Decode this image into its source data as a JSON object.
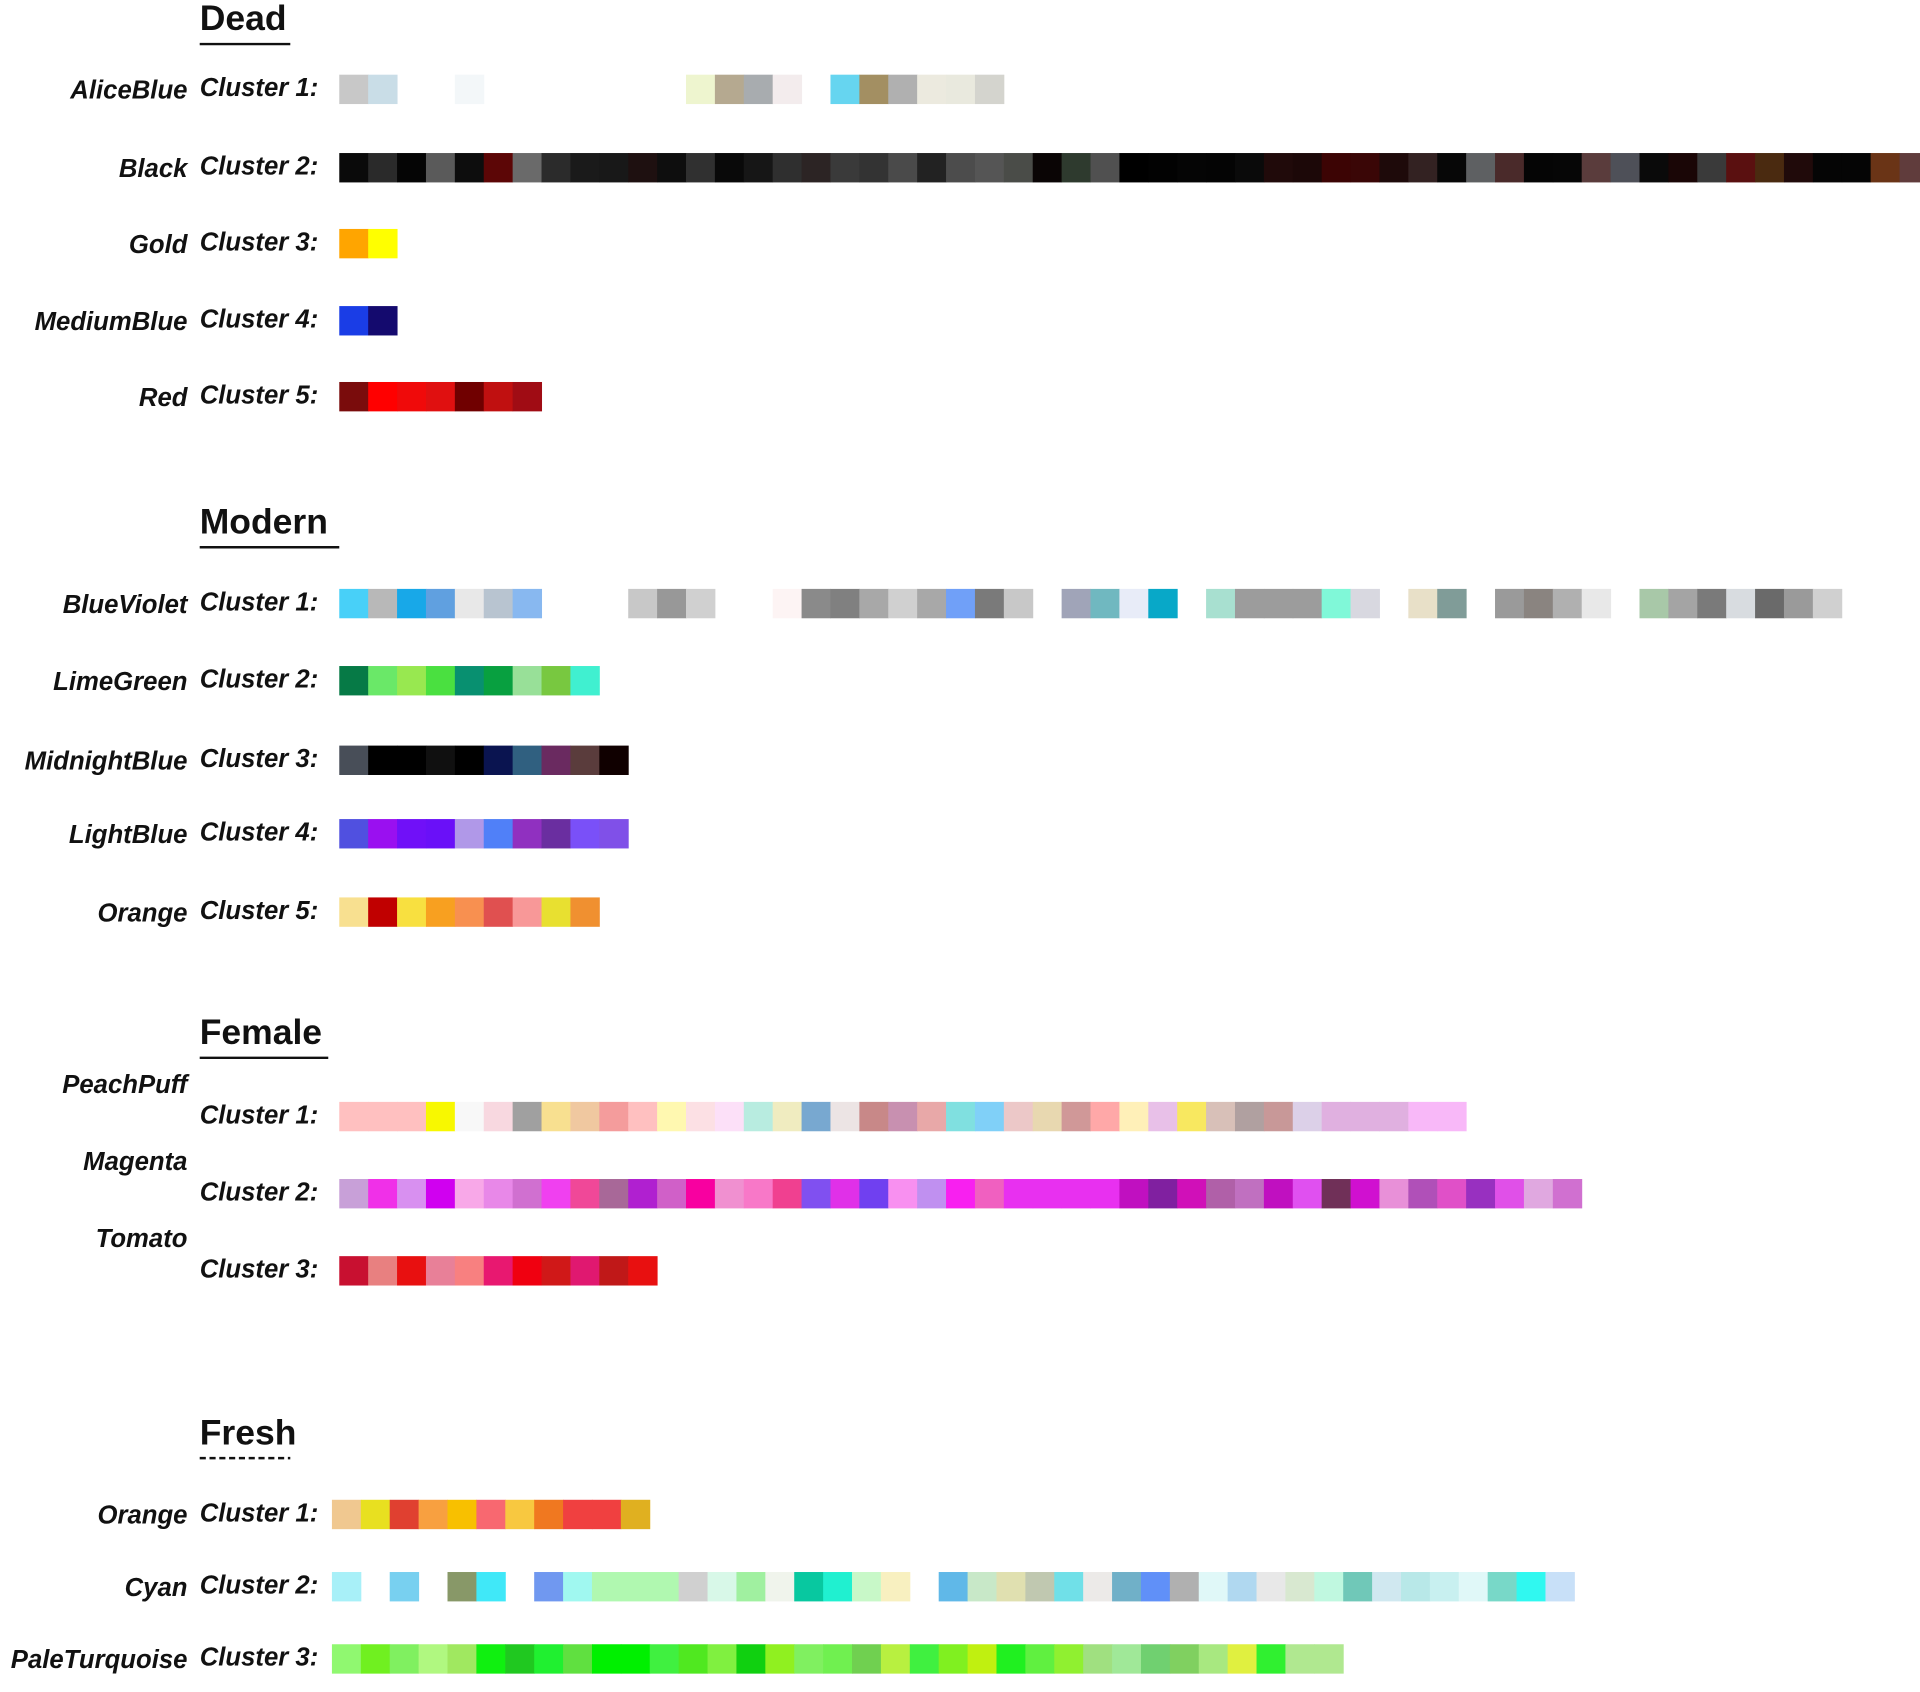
{
  "sections": [
    {
      "title": "Dead",
      "rows": [
        {
          "name": "AliceBlue",
          "cluster": "Cluster 1:",
          "swatches": [
            "#c8c8c8",
            "#c9dde7",
            null,
            null,
            "#f3f7f9",
            null,
            null,
            null,
            null,
            null,
            null,
            null,
            "#eef5cf",
            "#b5a990",
            "#a8acaf",
            "#f3eced",
            null,
            "#66d5f0",
            "#a38f62",
            "#b0b0b0",
            "#eceadf",
            "#e9e9de",
            "#d4d4ce"
          ]
        },
        {
          "name": "Black",
          "cluster": "Cluster 2:",
          "swatches": [
            "#0a0a0a",
            "#2a2a2a",
            "#050505",
            "#5a5a5a",
            "#0d0d0d",
            "#5c0606",
            "#6a6a6a",
            "#2b2b2b",
            "#1a1a1a",
            "#181818",
            "#1e1010",
            "#0e0e0e",
            "#303030",
            "#090909",
            "#161616",
            "#2f2f2f",
            "#2c2424",
            "#3a3a3a",
            "#333333",
            "#4a4a4a",
            "#222222",
            "#4c4c4c",
            "#555555",
            "#4a4c48",
            "#0a0505",
            "#2e3a2e",
            "#505050",
            "#000000",
            "#020202",
            "#050505",
            "#040404",
            "#0a0a0a",
            "#200a0a",
            "#1c0808",
            "#3c0404",
            "#3a0606",
            "#1e0a0a",
            "#332222",
            "#070707",
            "#5e6062",
            "#4a2a2a",
            "#050505",
            "#060606",
            "#5a3c3c",
            "#4e5058",
            "#0a0a0a",
            "#1a0606",
            "#3a3a3a",
            "#5a1010",
            "#4a2a10",
            "#200a0a",
            "#050505",
            "#050505",
            "#6a3416",
            "#603c3c"
          ]
        },
        {
          "name": "Gold",
          "cluster": "Cluster 3:",
          "swatches": [
            "#ffa500",
            "#ffff00"
          ]
        },
        {
          "name": "MediumBlue",
          "cluster": "Cluster 4:",
          "swatches": [
            "#1a3de6",
            "#140a6e"
          ]
        },
        {
          "name": "Red",
          "cluster": "Cluster 5:",
          "swatches": [
            "#7a0c0c",
            "#ff0000",
            "#f00a0a",
            "#e01010",
            "#700000",
            "#c01010",
            "#a00c14"
          ]
        }
      ]
    },
    {
      "title": "Modern",
      "rows": [
        {
          "name": "BlueViolet",
          "cluster": "Cluster 1:",
          "swatches": [
            "#48d0f8",
            "#b8b8b8",
            "#18a8e8",
            "#60a0e0",
            "#e8e8e8",
            "#b8c4d0",
            "#88b8f0",
            null,
            null,
            null,
            "#c8c8c8",
            "#989898",
            "#d0d0d0",
            null,
            null,
            "#fdf4f4",
            "#8a8a8a",
            "#808080",
            "#a8a8a8",
            "#d0d0d0",
            "#a8a8a8",
            "#70a0f8",
            "#7a7a7a",
            "#c8c8c8",
            null,
            "#a0a4b8",
            "#70b8c0",
            "#e8ecf8",
            "#08a8c8",
            null,
            "#a8e0d0",
            "#9c9c9c",
            "#9c9c9c",
            "#9c9c9c",
            "#80f8d8",
            "#d8d8e0",
            null,
            "#e8e0c8",
            "#809c98",
            null,
            "#9a9a9a",
            "#8a8480",
            "#b0b0b0",
            "#e8e8e8",
            null,
            "#a8c8a8",
            "#a4a4a4",
            "#7a7a7a",
            "#d8dce0",
            "#6a6a6a",
            "#9a9a9a",
            "#d0d0d0"
          ]
        },
        {
          "name": "LimeGreen",
          "cluster": "Cluster 2:",
          "swatches": [
            "#067a46",
            "#6ae868",
            "#98e850",
            "#4ae040",
            "#089070",
            "#08a040",
            "#98e098",
            "#78c840",
            "#40f0d0"
          ]
        },
        {
          "name": "MidnightBlue",
          "cluster": "Cluster 3:",
          "swatches": [
            "#484e58",
            "#000000",
            "#000000",
            "#101010",
            "#000000",
            "#0a1450",
            "#306080",
            "#6a2a60",
            "#5a3c3c",
            "#100000"
          ]
        },
        {
          "name": "LightBlue",
          "cluster": "Cluster 4:",
          "swatches": [
            "#5050e0",
            "#9a10f0",
            "#7010f8",
            "#6a10f8",
            "#b098e8",
            "#5080f8",
            "#9030c0",
            "#6a2ea0",
            "#7a50f8",
            "#8050e8"
          ]
        },
        {
          "name": "Orange",
          "cluster": "Cluster 5:",
          "swatches": [
            "#f8e090",
            "#c00000",
            "#f8e040",
            "#f8a020",
            "#f89050",
            "#e05050",
            "#f89898",
            "#e8e030",
            "#f09030"
          ]
        }
      ]
    },
    {
      "title": "Female",
      "rows": [
        {
          "name": "PeachPuff",
          "cluster": "Cluster 1:",
          "swatches": [
            "#ffc0c0",
            "#ffc0c0",
            "#ffc0c0",
            "#f8f800",
            "#f8f8f8",
            "#f8d8e0",
            "#a0a0a0",
            "#f8e090",
            "#f0c8a0",
            "#f49c9c",
            "#ffc0c0",
            "#fff8b0",
            "#fce0e4",
            "#fce0f8",
            "#b8ece0",
            "#f0ecc0",
            "#78a8d0",
            "#ece4e4",
            "#c88888",
            "#c890b0",
            "#e8a8a8",
            "#80e0e0",
            "#80d0f8",
            "#ecc8c8",
            "#e8d8b0",
            "#d09898",
            "#ffa8a8",
            "#fff0b8",
            "#e8c0e8",
            "#f8e860",
            "#d8c0b8",
            "#b0a0a0",
            "#c89898",
            "#dcd0e8",
            "#e0b0e0",
            "#e0b0e0",
            "#e0b0e0",
            "#f8b8f8",
            "#f8b8f8"
          ]
        },
        {
          "name": "Magenta",
          "cluster": "Cluster 2:",
          "swatches": [
            "#c8a0d8",
            "#f030e8",
            "#d890f0",
            "#d000f0",
            "#f8a8e8",
            "#e888e8",
            "#d070d0",
            "#f040f0",
            "#f04898",
            "#a86898",
            "#b020d0",
            "#d060c8",
            "#f800a0",
            "#f090d0",
            "#f878c8",
            "#f04090",
            "#8050f0",
            "#e030e8",
            "#7040f0",
            "#f890f0",
            "#c090f0",
            "#f820f0",
            "#f060c0",
            "#e830f0",
            "#e830f0",
            "#e830f0",
            "#e830f0",
            "#c010c0",
            "#8020a0",
            "#d010b8",
            "#b060a8",
            "#c070c0",
            "#c010c0",
            "#e050f0",
            "#703058",
            "#d010d0",
            "#e890d8",
            "#b050b8",
            "#e050c8",
            "#9830c0",
            "#e050e8",
            "#e0a8e0",
            "#d070d0"
          ]
        },
        {
          "name": "Tomato",
          "cluster": "Cluster 3:",
          "swatches": [
            "#c81030",
            "#e88080",
            "#e81010",
            "#e88098",
            "#f88080",
            "#e81870",
            "#f00010",
            "#d01818",
            "#e01870",
            "#c01818",
            "#e81010"
          ]
        }
      ]
    },
    {
      "title": "Fresh",
      "rows": [
        {
          "name": "Orange",
          "cluster": "Cluster 1:",
          "swatches": [
            "#f0c890",
            "#e8e020",
            "#e04030",
            "#f8a040",
            "#f8c000",
            "#f86870",
            "#f8c840",
            "#f07820",
            "#f04040",
            "#f04040",
            "#e0b020"
          ]
        },
        {
          "name": "Cyan",
          "cluster": "Cluster 2:",
          "swatches": [
            "#a8f0f8",
            null,
            "#78d0f0",
            null,
            "#889868",
            "#40e8f8",
            null,
            "#7098f0",
            "#a0f8f0",
            "#b0f8b0",
            "#b0f8b0",
            "#b0f8b0",
            "#d0d0d0",
            "#d8f8e8",
            "#a0f0a0",
            "#f0f4ec",
            "#08c8a0",
            "#20f0d0",
            "#c8f8c8",
            "#f8f0c0",
            null,
            "#60b8e8",
            "#c8e8c8",
            "#e0e0b0",
            "#c0c8b0",
            "#70e0e8",
            "#eceae8",
            "#70b0c8",
            "#6090f8",
            "#b0b0b0",
            "#e0f8f8",
            "#b0d8f0",
            "#e8e8e8",
            "#d8e8d0",
            "#c0f8e0",
            "#70c8b8",
            "#d0e8f0",
            "#b8e8e8",
            "#c8f0f0",
            "#e0f8f8",
            "#78d8c8",
            "#30f8f0",
            "#c8e0f8"
          ]
        },
        {
          "name": "PaleTurquoise",
          "cluster": "Cluster 3:",
          "swatches": [
            "#90f870",
            "#70f020",
            "#80f060",
            "#b0f880",
            "#a0e860",
            "#10f010",
            "#20c820",
            "#20f030",
            "#60e040",
            "#00f000",
            "#00f000",
            "#40f040",
            "#50e820",
            "#80f040",
            "#10d010",
            "#90f020",
            "#80f060",
            "#70f050",
            "#70d050",
            "#b8f040",
            "#40f040",
            "#80f020",
            "#c0f010",
            "#20f020",
            "#60f040",
            "#90f030",
            "#a0e080",
            "#a0e898",
            "#70d070",
            "#80d060",
            "#a8e880",
            "#e0f040",
            "#30f030",
            "#b0e890",
            "#b0e890"
          ]
        }
      ]
    }
  ]
}
